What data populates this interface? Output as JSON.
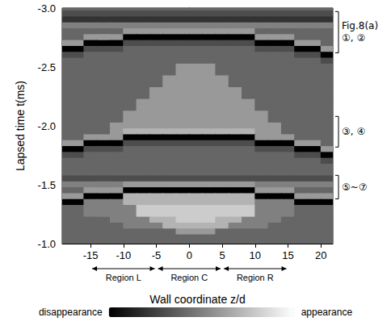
{
  "chart_data": {
    "type": "heatmap",
    "xlabel": "Wall coordinate z/d",
    "ylabel": "Lapsed time t(ms)",
    "xlim": [
      -19.3,
      21.8
    ],
    "xticks": [
      -15,
      -10,
      -5,
      0,
      5,
      10,
      15,
      20
    ],
    "ylim": [
      -3.0,
      -1.0
    ],
    "yticks": [
      {
        "value": -3,
        "label": "-3.0"
      },
      -2.5,
      {
        "value": -2,
        "label": "-2.0"
      },
      -1.5,
      {
        "value": -1,
        "label": "-1.0"
      }
    ],
    "grid": false,
    "x": [
      -19,
      -17,
      -15,
      -13,
      -11,
      -9,
      -7,
      -5,
      -3,
      -1,
      1,
      3,
      5,
      7,
      9,
      11,
      13,
      15,
      17,
      19,
      21
    ],
    "y": [
      -3.0,
      -2.95,
      -2.9,
      -2.85,
      -2.8,
      -2.75,
      -2.7,
      -2.65,
      -2.6,
      -2.55,
      -2.5,
      -2.45,
      -2.4,
      -2.35,
      -2.3,
      -2.25,
      -2.2,
      -2.15,
      -2.1,
      -2.05,
      -2.0,
      -1.95,
      -1.9,
      -1.85,
      -1.8,
      -1.75,
      -1.7,
      -1.65,
      -1.6,
      -1.55,
      -1.5,
      -1.45,
      -1.4,
      -1.35,
      -1.3,
      -1.25,
      -1.2,
      -1.15,
      -1.1,
      -1.05,
      -1.0
    ],
    "cells": [
      [
        4,
        4,
        4,
        4,
        4,
        4,
        4,
        4,
        4,
        4,
        4,
        4,
        4,
        4,
        4,
        4,
        4,
        4,
        4,
        4,
        4
      ],
      [
        3,
        3,
        3,
        3,
        3,
        3,
        3,
        3,
        3,
        3,
        3,
        3,
        3,
        3,
        3,
        3,
        3,
        3,
        3,
        3,
        3
      ],
      [
        2,
        2,
        2,
        2,
        2,
        2,
        2,
        2,
        2,
        2,
        2,
        2,
        2,
        2,
        2,
        2,
        2,
        2,
        2,
        2,
        2
      ],
      [
        5,
        5,
        5,
        5,
        5,
        5,
        5,
        5,
        5,
        5,
        5,
        5,
        5,
        5,
        5,
        5,
        5,
        5,
        5,
        5,
        5
      ],
      [
        4,
        4,
        4,
        4,
        4,
        6,
        6,
        6,
        6,
        6,
        6,
        6,
        6,
        6,
        6,
        4,
        4,
        4,
        4,
        4,
        4
      ],
      [
        4,
        4,
        6,
        6,
        6,
        0,
        0,
        0,
        0,
        0,
        0,
        0,
        0,
        0,
        0,
        6,
        6,
        6,
        4,
        4,
        4
      ],
      [
        6,
        6,
        0,
        0,
        0,
        3,
        3,
        3,
        3,
        3,
        3,
        3,
        3,
        3,
        3,
        0,
        0,
        0,
        6,
        6,
        4
      ],
      [
        0,
        0,
        3,
        3,
        3,
        4,
        4,
        4,
        4,
        4,
        4,
        4,
        4,
        4,
        4,
        3,
        3,
        3,
        0,
        0,
        6
      ],
      [
        3,
        3,
        4,
        4,
        4,
        4,
        4,
        4,
        4,
        4,
        4,
        4,
        4,
        4,
        4,
        4,
        4,
        4,
        3,
        3,
        0
      ],
      [
        4,
        4,
        4,
        4,
        4,
        4,
        4,
        4,
        4,
        4,
        4,
        4,
        4,
        4,
        4,
        4,
        4,
        4,
        4,
        4,
        3
      ],
      [
        4,
        4,
        4,
        4,
        4,
        4,
        4,
        4,
        4,
        6,
        6,
        6,
        4,
        4,
        4,
        4,
        4,
        4,
        4,
        4,
        4
      ],
      [
        4,
        4,
        4,
        4,
        4,
        4,
        4,
        4,
        4,
        6,
        6,
        6,
        4,
        4,
        4,
        4,
        4,
        4,
        4,
        4,
        4
      ],
      [
        4,
        4,
        4,
        4,
        4,
        4,
        4,
        4,
        6,
        6,
        6,
        6,
        6,
        4,
        4,
        4,
        4,
        4,
        4,
        4,
        4
      ],
      [
        4,
        4,
        4,
        4,
        4,
        4,
        4,
        4,
        6,
        6,
        6,
        6,
        6,
        4,
        4,
        4,
        4,
        4,
        4,
        4,
        4
      ],
      [
        4,
        4,
        4,
        4,
        4,
        4,
        4,
        6,
        6,
        6,
        6,
        6,
        6,
        6,
        4,
        4,
        4,
        4,
        4,
        4,
        4
      ],
      [
        4,
        4,
        4,
        4,
        4,
        4,
        4,
        6,
        6,
        6,
        6,
        6,
        6,
        6,
        4,
        4,
        4,
        4,
        4,
        4,
        4
      ],
      [
        4,
        4,
        4,
        4,
        4,
        4,
        6,
        6,
        6,
        6,
        6,
        6,
        6,
        6,
        6,
        4,
        4,
        4,
        4,
        4,
        4
      ],
      [
        4,
        4,
        4,
        4,
        4,
        4,
        6,
        6,
        6,
        6,
        6,
        6,
        6,
        6,
        6,
        4,
        4,
        4,
        4,
        4,
        4
      ],
      [
        4,
        4,
        4,
        4,
        4,
        6,
        6,
        6,
        6,
        6,
        6,
        6,
        6,
        6,
        6,
        6,
        4,
        4,
        4,
        4,
        4
      ],
      [
        4,
        4,
        4,
        4,
        4,
        6,
        6,
        6,
        6,
        6,
        6,
        6,
        6,
        6,
        6,
        6,
        4,
        4,
        4,
        4,
        4
      ],
      [
        4,
        4,
        4,
        4,
        6,
        6,
        6,
        6,
        6,
        6,
        6,
        6,
        6,
        6,
        6,
        6,
        6,
        4,
        4,
        4,
        4
      ],
      [
        4,
        4,
        4,
        4,
        6,
        7,
        7,
        7,
        7,
        7,
        7,
        7,
        7,
        7,
        7,
        6,
        6,
        4,
        4,
        4,
        4
      ],
      [
        4,
        4,
        6,
        6,
        6,
        0,
        0,
        0,
        0,
        0,
        0,
        0,
        0,
        0,
        0,
        6,
        6,
        6,
        4,
        4,
        4
      ],
      [
        6,
        6,
        0,
        0,
        0,
        3,
        3,
        3,
        3,
        3,
        3,
        3,
        3,
        3,
        3,
        0,
        0,
        0,
        6,
        6,
        4
      ],
      [
        0,
        0,
        3,
        3,
        3,
        4,
        4,
        4,
        4,
        4,
        4,
        4,
        4,
        4,
        4,
        3,
        3,
        3,
        0,
        0,
        6
      ],
      [
        3,
        3,
        4,
        4,
        4,
        4,
        4,
        4,
        4,
        4,
        4,
        4,
        4,
        4,
        4,
        4,
        4,
        4,
        3,
        3,
        0
      ],
      [
        4,
        4,
        4,
        4,
        4,
        4,
        4,
        4,
        4,
        4,
        4,
        4,
        4,
        4,
        4,
        4,
        4,
        4,
        4,
        4,
        3
      ],
      [
        4,
        4,
        4,
        4,
        4,
        4,
        4,
        4,
        4,
        4,
        4,
        4,
        4,
        4,
        4,
        4,
        4,
        4,
        4,
        4,
        4
      ],
      [
        4,
        4,
        4,
        4,
        4,
        4,
        4,
        4,
        4,
        4,
        4,
        4,
        4,
        4,
        4,
        4,
        4,
        4,
        4,
        4,
        4
      ],
      [
        3,
        3,
        3,
        3,
        3,
        3,
        3,
        3,
        3,
        3,
        3,
        3,
        3,
        3,
        3,
        3,
        3,
        3,
        3,
        3,
        3
      ],
      [
        5,
        5,
        5,
        5,
        5,
        6,
        6,
        6,
        6,
        6,
        6,
        6,
        6,
        6,
        6,
        5,
        5,
        5,
        5,
        5,
        5
      ],
      [
        4,
        4,
        6,
        6,
        6,
        0,
        0,
        0,
        0,
        0,
        0,
        0,
        0,
        0,
        0,
        6,
        6,
        6,
        4,
        4,
        4
      ],
      [
        6,
        6,
        0,
        0,
        0,
        7,
        7,
        7,
        7,
        7,
        7,
        7,
        7,
        7,
        7,
        0,
        0,
        0,
        6,
        6,
        6
      ],
      [
        0,
        0,
        5,
        5,
        5,
        7,
        7,
        7,
        7,
        7,
        7,
        7,
        7,
        7,
        7,
        5,
        5,
        5,
        0,
        0,
        0
      ],
      [
        4,
        4,
        5,
        5,
        5,
        5,
        8,
        8,
        8,
        8,
        8,
        8,
        8,
        8,
        8,
        5,
        5,
        5,
        4,
        4,
        4
      ],
      [
        4,
        4,
        5,
        5,
        5,
        5,
        8,
        8,
        8,
        8,
        8,
        8,
        8,
        8,
        8,
        5,
        5,
        5,
        4,
        4,
        4
      ],
      [
        4,
        4,
        4,
        4,
        5,
        5,
        5,
        7,
        7,
        8,
        8,
        8,
        7,
        7,
        5,
        5,
        5,
        4,
        4,
        4,
        4
      ],
      [
        4,
        4,
        4,
        4,
        4,
        5,
        5,
        5,
        7,
        7,
        7,
        7,
        7,
        5,
        5,
        5,
        4,
        4,
        4,
        4,
        4
      ],
      [
        4,
        4,
        4,
        4,
        4,
        4,
        4,
        4,
        4,
        6,
        6,
        6,
        4,
        4,
        4,
        4,
        4,
        4,
        4,
        4,
        4
      ],
      [
        4,
        4,
        4,
        4,
        4,
        4,
        4,
        4,
        4,
        4,
        4,
        4,
        4,
        4,
        4,
        4,
        4,
        4,
        4,
        4,
        4
      ],
      [
        4,
        4,
        4,
        4,
        4,
        4,
        4,
        4,
        4,
        4,
        4,
        4,
        4,
        4,
        4,
        4,
        4,
        4,
        4,
        4,
        4
      ]
    ],
    "colorbar": {
      "range": [
        0,
        10
      ],
      "low_label": "disappearance",
      "high_label": "appearance",
      "colors": [
        "#000000",
        "#ffffff"
      ]
    },
    "regions": [
      {
        "label": "Region L",
        "z_range": [
          -15,
          -5
        ]
      },
      {
        "label": "Region C",
        "z_range": [
          -5,
          5
        ]
      },
      {
        "label": "Region R",
        "z_range": [
          5,
          15
        ]
      }
    ],
    "brackets": [
      {
        "labels": [
          "Fig.8(a)",
          "①, ②"
        ],
        "t_range": [
          -2.97,
          -2.62
        ]
      },
      {
        "labels": [
          "③, ④"
        ],
        "t_range": [
          -2.08,
          -1.82
        ]
      },
      {
        "labels": [
          "⑤~⑦"
        ],
        "t_range": [
          -1.58,
          -1.38
        ]
      }
    ]
  }
}
